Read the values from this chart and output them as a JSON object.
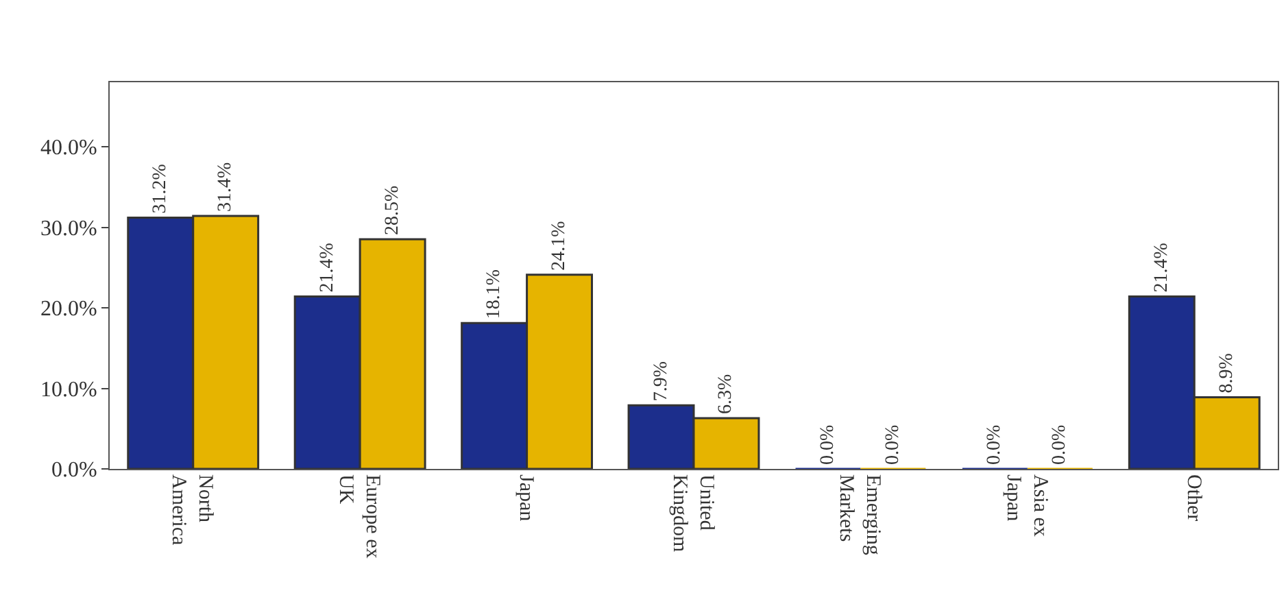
{
  "chart_data": {
    "type": "bar",
    "categories": [
      "North America",
      "Europe ex UK",
      "Japan",
      "United Kingdom",
      "Emerging Markets",
      "Asia ex Japan",
      "Other"
    ],
    "series": [
      {
        "color": "#1c2e8c",
        "values": [
          31.2,
          21.4,
          18.1,
          7.9,
          0.0,
          0.0,
          21.4
        ],
        "value_labels": [
          "31.2%",
          "21.4%",
          "18.1%",
          "7.9%",
          "0.0%",
          "0.0%",
          "21.4%"
        ]
      },
      {
        "color": "#e6b400",
        "values": [
          31.4,
          28.5,
          24.1,
          6.3,
          0.0,
          0.0,
          8.9
        ],
        "value_labels": [
          "31.4%",
          "28.5%",
          "24.1%",
          "6.3%",
          "0.0%",
          "0.0%",
          "8.9%"
        ]
      }
    ],
    "ylim": [
      0,
      48
    ],
    "yticks": [
      {
        "value": 0,
        "label": "0.0%"
      },
      {
        "value": 10,
        "label": "10.0%"
      },
      {
        "value": 20,
        "label": "20.0%"
      },
      {
        "value": 30,
        "label": "30.0%"
      },
      {
        "value": 40,
        "label": "40.0%"
      }
    ],
    "grid": false
  }
}
